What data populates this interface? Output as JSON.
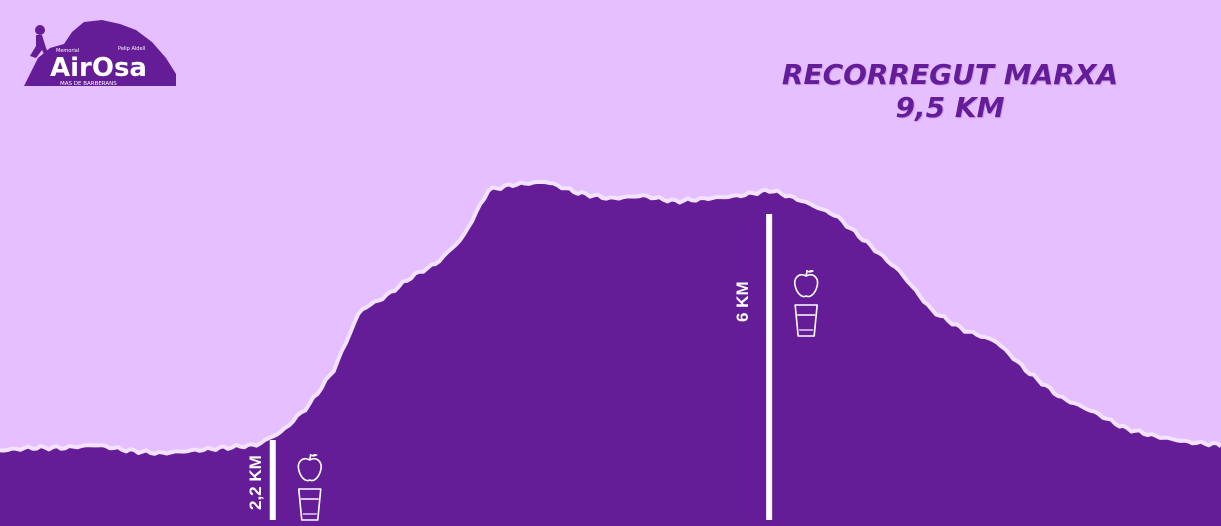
{
  "title": {
    "line1": "RECORREGUT MARXA",
    "line2": "9,5 KM"
  },
  "logo": {
    "text": "AirOsa",
    "subtext_top_left": "Memorial",
    "subtext_top_right": "Pelip Aldell",
    "subtext_bottom": "MAS DE BARBERANS"
  },
  "colors": {
    "sky": "#e5bfff",
    "terrain": "#641c97",
    "outline": "#f3e3ff",
    "accent": "#641c97",
    "marker": "#ffffff"
  },
  "chart_data": {
    "type": "area",
    "title": "RECORREGUT MARXA 9,5 KM",
    "xlabel": "",
    "ylabel": "",
    "x_unit": "km",
    "xlim": [
      0,
      9.5
    ],
    "ylim": [
      0,
      100
    ],
    "grid": false,
    "x": [
      0,
      0.25,
      0.5,
      0.75,
      1.0,
      1.25,
      1.5,
      1.75,
      2.0,
      2.2,
      2.4,
      2.6,
      2.8,
      3.0,
      3.2,
      3.4,
      3.6,
      3.8,
      4.0,
      4.25,
      4.5,
      4.75,
      5.0,
      5.25,
      5.5,
      5.75,
      6.0,
      6.25,
      6.5,
      6.75,
      7.0,
      7.25,
      7.5,
      7.75,
      8.0,
      8.25,
      8.5,
      8.75,
      9.0,
      9.25,
      9.5
    ],
    "values": [
      2,
      3,
      3,
      4,
      2,
      1,
      2,
      3,
      4,
      9,
      18,
      31,
      52,
      57,
      64,
      69,
      78,
      95,
      97,
      98,
      94,
      92,
      93,
      91,
      92,
      93,
      95,
      91,
      86,
      76,
      66,
      52,
      45,
      41,
      30,
      21,
      16,
      10,
      7,
      5,
      4
    ],
    "markers": [
      {
        "km": 2.2,
        "label": "2,2 KM",
        "icons": [
          "apple-icon",
          "glass-icon"
        ]
      },
      {
        "km": 6.0,
        "label": "6 KM",
        "icons": [
          "apple-icon",
          "glass-icon"
        ]
      }
    ]
  }
}
